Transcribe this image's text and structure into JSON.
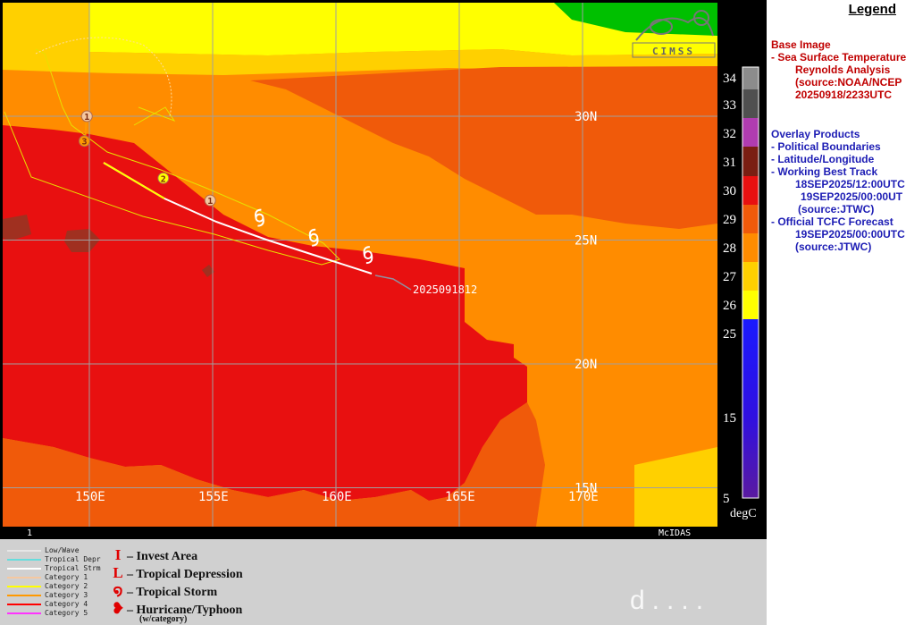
{
  "map": {
    "lat_labels": [
      {
        "text": "30N",
        "lat": 30
      },
      {
        "text": "25N",
        "lat": 25
      },
      {
        "text": "20N",
        "lat": 20
      },
      {
        "text": "15N",
        "lat": 15
      }
    ],
    "lon_labels": [
      {
        "text": "150E",
        "lon": 150
      },
      {
        "text": "155E",
        "lon": 155
      },
      {
        "text": "160E",
        "lon": 160
      },
      {
        "text": "165E",
        "lon": 165
      },
      {
        "text": "170E",
        "lon": 170
      }
    ],
    "track_label": "2025091812",
    "frame_number": "1",
    "software_label": "McIDAS",
    "logo_text": "CIMSS",
    "track_points": [
      {
        "symbol": "tropical-storm",
        "lon": 161.3,
        "lat": 24.4
      },
      {
        "symbol": "tropical-storm",
        "lon": 159.1,
        "lat": 25.1
      },
      {
        "symbol": "tropical-storm",
        "lon": 156.9,
        "lat": 25.9
      },
      {
        "symbol": "category-1",
        "label": "1",
        "lon": 154.9,
        "lat": 26.6
      },
      {
        "symbol": "category-2",
        "label": "2",
        "lon": 153.0,
        "lat": 27.5
      },
      {
        "symbol": "category-1",
        "label": "1",
        "lon": 149.9,
        "lat": 30.0
      },
      {
        "symbol": "category-3",
        "label": "3",
        "lon": 149.8,
        "lat": 29.0
      }
    ]
  },
  "colorbar": {
    "labels": [
      "34",
      "33",
      "32",
      "31",
      "30",
      "29",
      "28",
      "27",
      "26",
      "25",
      "15",
      "5"
    ],
    "unit": "degC",
    "colors": {
      "c34": "#8c8c8c",
      "c33": "#505050",
      "c32": "#b03cb0",
      "c31": "#7a1e12",
      "c30": "#e81010",
      "c29": "#f05a0a",
      "c28": "#ff8c00",
      "c27": "#ffd000",
      "c26": "#ffff00",
      "c25": "#00c000",
      "cool": "#1a1aff",
      "cold": "#5a1aa0"
    }
  },
  "legend": {
    "title": "Legend",
    "base_header": "Base Image",
    "base_item": "-  Sea Surface Temperature",
    "base_sub1": "Reynolds Analysis",
    "base_sub2": "(source:NOAA/NCEP",
    "base_sub3": "20250918/2233UTC",
    "overlay_header": "Overlay Products",
    "ov1": "-  Political Boundaries",
    "ov2": "-  Latitude/Longitude",
    "ov3": "-  Working Best Track",
    "ov3_sub1": "18SEP2025/12:00UTC",
    "ov3_sub2": "19SEP2025/00:00UT",
    "ov3_sub3": "(source:JTWC)",
    "ov4": "-  Official TCFC Forecast",
    "ov4_sub1": "19SEP2025/00:00UTC",
    "ov4_sub2": "(source:JTWC)"
  },
  "key": {
    "lines": [
      {
        "label": "Low/Wave",
        "color": "#e6e6e6"
      },
      {
        "label": "Tropical Depr",
        "color": "#66dddd"
      },
      {
        "label": "Tropical Strm",
        "color": "#ffffff"
      },
      {
        "label": "Category 1",
        "color": "#f5c8a0"
      },
      {
        "label": "Category 2",
        "color": "#ffff00"
      },
      {
        "label": "Category 3",
        "color": "#ff9900"
      },
      {
        "label": "Category 4",
        "color": "#ff0000"
      },
      {
        "label": "Category 5",
        "color": "#ff33ff"
      }
    ],
    "symbols": [
      {
        "glyph": "I",
        "label": "– Invest Area"
      },
      {
        "glyph": "L",
        "label": "– Tropical Depression"
      },
      {
        "glyph": "໑",
        "label": "– Tropical Storm"
      },
      {
        "glyph": "❥",
        "label": "– Hurricane/Typhoon"
      }
    ],
    "symbol_sub": "(w/category)",
    "blurred_text": "d...."
  }
}
